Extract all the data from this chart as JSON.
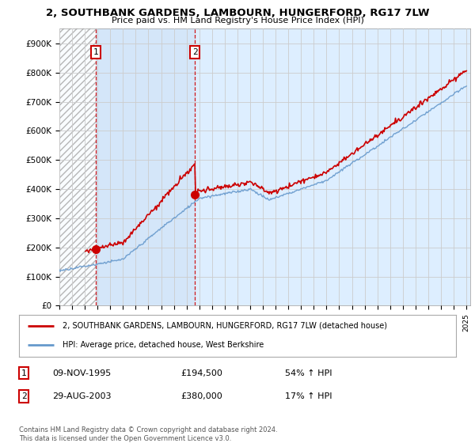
{
  "title": "2, SOUTHBANK GARDENS, LAMBOURN, HUNGERFORD, RG17 7LW",
  "subtitle": "Price paid vs. HM Land Registry's House Price Index (HPI)",
  "legend_line1": "2, SOUTHBANK GARDENS, LAMBOURN, HUNGERFORD, RG17 7LW (detached house)",
  "legend_line2": "HPI: Average price, detached house, West Berkshire",
  "annotation1_label": "1",
  "annotation1_date": "09-NOV-1995",
  "annotation1_price": "£194,500",
  "annotation1_info": "54% ↑ HPI",
  "annotation2_label": "2",
  "annotation2_date": "29-AUG-2003",
  "annotation2_price": "£380,000",
  "annotation2_info": "17% ↑ HPI",
  "footer": "Contains HM Land Registry data © Crown copyright and database right 2024.\nThis data is licensed under the Open Government Licence v3.0.",
  "red_color": "#cc0000",
  "blue_color": "#6699cc",
  "grid_color": "#cccccc",
  "bg_color": "#ffffff",
  "plot_bg_color": "#ddeeff",
  "hatch_color": "#aaaaaa",
  "ylim": [
    0,
    950000
  ],
  "yticks": [
    0,
    100000,
    200000,
    300000,
    400000,
    500000,
    600000,
    700000,
    800000,
    900000
  ],
  "ytick_labels": [
    "£0",
    "£100K",
    "£200K",
    "£300K",
    "£400K",
    "£500K",
    "£600K",
    "£700K",
    "£800K",
    "£900K"
  ],
  "purchase1_x": 1995.86,
  "purchase1_y": 194500,
  "purchase2_x": 2003.65,
  "purchase2_y": 380000,
  "vline1_x": 1995.86,
  "vline2_x": 2003.65,
  "xmin": 1993,
  "xmax": 2025
}
